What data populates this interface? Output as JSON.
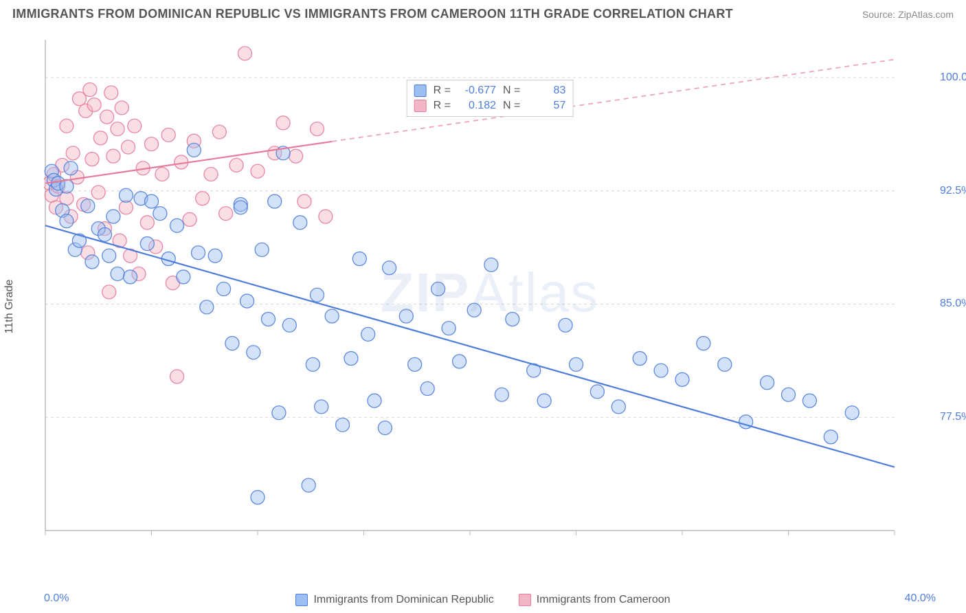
{
  "title": "IMMIGRANTS FROM DOMINICAN REPUBLIC VS IMMIGRANTS FROM CAMEROON 11TH GRADE CORRELATION CHART",
  "source": "Source: ZipAtlas.com",
  "ylabel": "11th Grade",
  "watermark_a": "ZIP",
  "watermark_b": "Atlas",
  "chart": {
    "type": "scatter-with-trend",
    "background_color": "#ffffff",
    "grid_color": "#d9d9d9",
    "axis_color": "#bbbbbb",
    "axis_label_color": "#4f7ddb",
    "xlim": [
      0,
      40
    ],
    "ylim": [
      70,
      102.5
    ],
    "xticks": [
      0,
      5,
      10,
      15,
      20,
      25,
      30,
      35,
      40
    ],
    "xtick_labels_ends": [
      "0.0%",
      "40.0%"
    ],
    "yticks": [
      77.5,
      85.0,
      92.5,
      100.0
    ],
    "ytick_labels": [
      "77.5%",
      "85.0%",
      "92.5%",
      "100.0%"
    ],
    "marker_radius": 10,
    "marker_opacity": 0.45,
    "marker_stroke_opacity": 0.9,
    "line_width": 2.2
  },
  "series": {
    "blue": {
      "label": "Immigrants from Dominican Republic",
      "color_fill": "#9dbef0",
      "color_stroke": "#4f7ddb",
      "r_label": "R =",
      "r_value": "-0.677",
      "n_label": "N =",
      "n_value": "83",
      "trend": {
        "x1": 0,
        "y1": 90.2,
        "x2": 40,
        "y2": 74.2,
        "solid_until_x": 40
      },
      "points": [
        [
          0.3,
          93.8
        ],
        [
          0.4,
          93.2
        ],
        [
          0.5,
          92.6
        ],
        [
          0.6,
          93.0
        ],
        [
          0.8,
          91.2
        ],
        [
          1.0,
          92.8
        ],
        [
          1.0,
          90.5
        ],
        [
          1.2,
          94.0
        ],
        [
          1.4,
          88.6
        ],
        [
          1.6,
          89.2
        ],
        [
          2.0,
          91.5
        ],
        [
          2.2,
          87.8
        ],
        [
          2.5,
          90.0
        ],
        [
          2.8,
          89.6
        ],
        [
          3.0,
          88.2
        ],
        [
          3.2,
          90.8
        ],
        [
          3.4,
          87.0
        ],
        [
          3.8,
          92.2
        ],
        [
          4.0,
          86.8
        ],
        [
          4.5,
          92.0
        ],
        [
          4.8,
          89.0
        ],
        [
          5.0,
          91.8
        ],
        [
          5.4,
          91.0
        ],
        [
          5.8,
          88.0
        ],
        [
          6.2,
          90.2
        ],
        [
          6.5,
          86.8
        ],
        [
          7.0,
          95.2
        ],
        [
          7.2,
          88.4
        ],
        [
          7.6,
          84.8
        ],
        [
          8.0,
          88.2
        ],
        [
          8.4,
          86.0
        ],
        [
          8.8,
          82.4
        ],
        [
          9.2,
          91.6
        ],
        [
          9.2,
          91.4
        ],
        [
          9.5,
          85.2
        ],
        [
          9.8,
          81.8
        ],
        [
          10.0,
          72.2
        ],
        [
          10.2,
          88.6
        ],
        [
          10.5,
          84.0
        ],
        [
          10.8,
          91.8
        ],
        [
          11.0,
          77.8
        ],
        [
          11.2,
          95.0
        ],
        [
          11.5,
          83.6
        ],
        [
          12.0,
          90.4
        ],
        [
          12.4,
          73.0
        ],
        [
          12.6,
          81.0
        ],
        [
          12.8,
          85.6
        ],
        [
          13.0,
          78.2
        ],
        [
          13.5,
          84.2
        ],
        [
          14.0,
          77.0
        ],
        [
          14.4,
          81.4
        ],
        [
          14.8,
          88.0
        ],
        [
          15.2,
          83.0
        ],
        [
          15.5,
          78.6
        ],
        [
          16.0,
          76.8
        ],
        [
          16.2,
          87.4
        ],
        [
          17.0,
          84.2
        ],
        [
          17.4,
          81.0
        ],
        [
          18.0,
          79.4
        ],
        [
          18.5,
          86.0
        ],
        [
          19.0,
          83.4
        ],
        [
          19.5,
          81.2
        ],
        [
          20.2,
          84.6
        ],
        [
          21.0,
          87.6
        ],
        [
          21.5,
          79.0
        ],
        [
          22.0,
          84.0
        ],
        [
          23.0,
          80.6
        ],
        [
          23.5,
          78.6
        ],
        [
          24.5,
          83.6
        ],
        [
          25.0,
          81.0
        ],
        [
          26.0,
          79.2
        ],
        [
          27.0,
          78.2
        ],
        [
          28.0,
          81.4
        ],
        [
          29.0,
          80.6
        ],
        [
          30.0,
          80.0
        ],
        [
          31.0,
          82.4
        ],
        [
          32.0,
          81.0
        ],
        [
          33.0,
          77.2
        ],
        [
          34.0,
          79.8
        ],
        [
          35.0,
          79.0
        ],
        [
          36.0,
          78.6
        ],
        [
          37.0,
          76.2
        ],
        [
          38.0,
          77.8
        ]
      ]
    },
    "pink": {
      "label": "Immigrants from Cameroon",
      "color_fill": "#f2b6c6",
      "color_stroke": "#e67a9a",
      "r_label": "R =",
      "r_value": "0.182",
      "n_label": "N =",
      "n_value": "57",
      "trend": {
        "x1": 0,
        "y1": 93.0,
        "x2": 40,
        "y2": 101.2,
        "solid_until_x": 13.5
      },
      "points": [
        [
          0.2,
          93.0
        ],
        [
          0.3,
          92.2
        ],
        [
          0.4,
          93.6
        ],
        [
          0.5,
          91.4
        ],
        [
          0.6,
          92.8
        ],
        [
          0.8,
          94.2
        ],
        [
          1.0,
          92.0
        ],
        [
          1.0,
          96.8
        ],
        [
          1.2,
          90.8
        ],
        [
          1.3,
          95.0
        ],
        [
          1.5,
          93.4
        ],
        [
          1.6,
          98.6
        ],
        [
          1.8,
          91.6
        ],
        [
          1.9,
          97.8
        ],
        [
          2.0,
          88.4
        ],
        [
          2.1,
          99.2
        ],
        [
          2.2,
          94.6
        ],
        [
          2.3,
          98.2
        ],
        [
          2.5,
          92.4
        ],
        [
          2.6,
          96.0
        ],
        [
          2.8,
          90.0
        ],
        [
          2.9,
          97.4
        ],
        [
          3.0,
          85.8
        ],
        [
          3.1,
          99.0
        ],
        [
          3.2,
          94.8
        ],
        [
          3.4,
          96.6
        ],
        [
          3.5,
          89.2
        ],
        [
          3.6,
          98.0
        ],
        [
          3.8,
          91.4
        ],
        [
          3.9,
          95.4
        ],
        [
          4.0,
          88.2
        ],
        [
          4.2,
          96.8
        ],
        [
          4.4,
          87.0
        ],
        [
          4.6,
          94.0
        ],
        [
          4.8,
          90.4
        ],
        [
          5.0,
          95.6
        ],
        [
          5.2,
          88.8
        ],
        [
          5.5,
          93.6
        ],
        [
          5.8,
          96.2
        ],
        [
          6.0,
          86.4
        ],
        [
          6.2,
          80.2
        ],
        [
          6.4,
          94.4
        ],
        [
          6.8,
          90.6
        ],
        [
          7.0,
          95.8
        ],
        [
          7.4,
          92.0
        ],
        [
          7.8,
          93.6
        ],
        [
          8.2,
          96.4
        ],
        [
          8.5,
          91.0
        ],
        [
          9.0,
          94.2
        ],
        [
          9.4,
          101.6
        ],
        [
          10.0,
          93.8
        ],
        [
          10.8,
          95.0
        ],
        [
          11.2,
          97.0
        ],
        [
          11.8,
          94.8
        ],
        [
          12.2,
          91.8
        ],
        [
          12.8,
          96.6
        ],
        [
          13.2,
          90.8
        ]
      ]
    }
  }
}
